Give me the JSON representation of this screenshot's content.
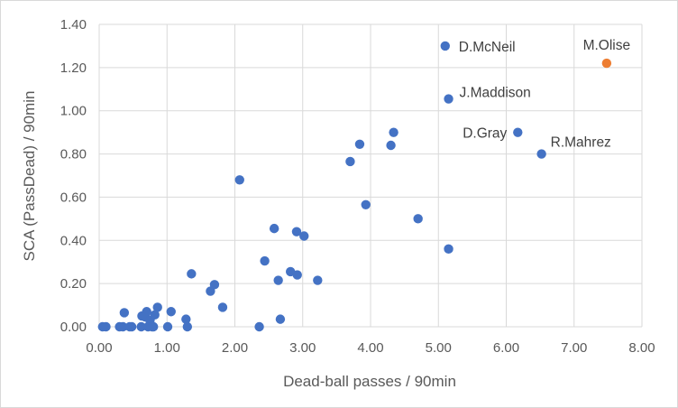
{
  "chart_data": {
    "type": "scatter",
    "title": "",
    "xlabel": "Dead-ball passes / 90min",
    "ylabel": "SCA (PassDead) / 90min",
    "xlim": [
      0,
      8
    ],
    "ylim": [
      0,
      1.4
    ],
    "x_ticks": [
      "0.00",
      "1.00",
      "2.00",
      "3.00",
      "4.00",
      "5.00",
      "6.00",
      "7.00",
      "8.00"
    ],
    "y_ticks": [
      "0.00",
      "0.20",
      "0.40",
      "0.60",
      "0.80",
      "1.00",
      "1.20",
      "1.40"
    ],
    "grid": "vertical and horizontal major gridlines",
    "legend": "none",
    "colors": {
      "default": "#4472C4",
      "highlight": "#ED7D31"
    },
    "series": [
      {
        "color": "#4472C4",
        "points": [
          {
            "x": 0.05,
            "y": 0.0
          },
          {
            "x": 0.1,
            "y": 0.0
          },
          {
            "x": 0.3,
            "y": 0.0
          },
          {
            "x": 0.35,
            "y": 0.0
          },
          {
            "x": 0.37,
            "y": 0.065
          },
          {
            "x": 0.45,
            "y": 0.0
          },
          {
            "x": 0.48,
            "y": 0.0
          },
          {
            "x": 0.62,
            "y": 0.0
          },
          {
            "x": 0.63,
            "y": 0.05
          },
          {
            "x": 0.68,
            "y": 0.045
          },
          {
            "x": 0.7,
            "y": 0.07
          },
          {
            "x": 0.72,
            "y": 0.0
          },
          {
            "x": 0.75,
            "y": 0.03
          },
          {
            "x": 0.78,
            "y": 0.0
          },
          {
            "x": 0.8,
            "y": 0.0
          },
          {
            "x": 0.82,
            "y": 0.055
          },
          {
            "x": 0.86,
            "y": 0.09
          },
          {
            "x": 1.01,
            "y": 0.0
          },
          {
            "x": 1.06,
            "y": 0.07
          },
          {
            "x": 1.28,
            "y": 0.035
          },
          {
            "x": 1.3,
            "y": 0.0
          },
          {
            "x": 1.36,
            "y": 0.245
          },
          {
            "x": 1.64,
            "y": 0.165
          },
          {
            "x": 1.7,
            "y": 0.195
          },
          {
            "x": 1.82,
            "y": 0.09
          },
          {
            "x": 2.07,
            "y": 0.68
          },
          {
            "x": 2.36,
            "y": 0.0
          },
          {
            "x": 2.44,
            "y": 0.305
          },
          {
            "x": 2.58,
            "y": 0.455
          },
          {
            "x": 2.64,
            "y": 0.215
          },
          {
            "x": 2.67,
            "y": 0.035
          },
          {
            "x": 2.82,
            "y": 0.255
          },
          {
            "x": 2.91,
            "y": 0.44
          },
          {
            "x": 2.92,
            "y": 0.24
          },
          {
            "x": 3.02,
            "y": 0.42
          },
          {
            "x": 3.22,
            "y": 0.215
          },
          {
            "x": 3.7,
            "y": 0.765
          },
          {
            "x": 3.84,
            "y": 0.845
          },
          {
            "x": 3.93,
            "y": 0.565
          },
          {
            "x": 4.3,
            "y": 0.84
          },
          {
            "x": 4.34,
            "y": 0.9
          },
          {
            "x": 4.7,
            "y": 0.5
          },
          {
            "x": 5.15,
            "y": 0.36
          }
        ]
      },
      {
        "color": "#4472C4",
        "labeled_points": [
          {
            "x": 5.1,
            "y": 1.3,
            "label": "D.McNeil"
          },
          {
            "x": 5.15,
            "y": 1.055,
            "label": "J.Maddison"
          },
          {
            "x": 6.17,
            "y": 0.9,
            "label": "D.Gray"
          },
          {
            "x": 6.52,
            "y": 0.8,
            "label": "R.Mahrez"
          }
        ]
      },
      {
        "color": "#ED7D31",
        "labeled_points": [
          {
            "x": 7.48,
            "y": 1.22,
            "label": "M.Olise"
          }
        ]
      }
    ]
  }
}
